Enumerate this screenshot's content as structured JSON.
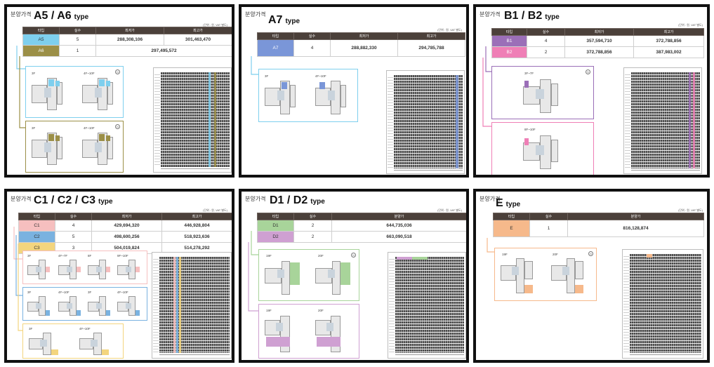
{
  "common": {
    "header_label": "분양가격",
    "unit_note": "(단위 : 원, VAT 별도)"
  },
  "colors": {
    "blue": "#7ecfee",
    "olive": "#9b8f47",
    "periwinkle": "#7a96d8",
    "purple": "#9b6fb8",
    "pink": "#ef7fb6",
    "c1": "#f6bfbf",
    "c2": "#7ab2e0",
    "c3": "#f3d57e",
    "green": "#a8d49a",
    "lilac": "#cfa0d2",
    "orange": "#f6b98b"
  },
  "panels": [
    {
      "title": "A5 / A6",
      "subtitle": "type",
      "headers": [
        "타입",
        "실수",
        "최저가",
        "최고가"
      ],
      "rows": [
        {
          "type": "A5",
          "count": "5",
          "min": "288,308,106",
          "max": "301,463,470"
        },
        {
          "type": "A6",
          "count": "1",
          "single": "297,495,572"
        }
      ],
      "floor_groups": [
        {
          "labels": [
            "3F",
            "4F~10F"
          ]
        },
        {
          "labels": [
            "3F",
            "4F~10F"
          ]
        }
      ]
    },
    {
      "title": "A7",
      "subtitle": "type",
      "headers": [
        "타입",
        "실수",
        "최저가",
        "최고가"
      ],
      "rows": [
        {
          "type": "A7",
          "count": "4",
          "min": "288,882,330",
          "max": "294,785,788"
        }
      ],
      "floor_groups": [
        {
          "labels": [
            "3F",
            "4F~10F"
          ]
        }
      ]
    },
    {
      "title": "B1 / B2",
      "subtitle": "type",
      "headers": [
        "타입",
        "실수",
        "최저가",
        "최고가"
      ],
      "rows": [
        {
          "type": "B1",
          "count": "4",
          "min": "357,594,710",
          "max": "372,788,856"
        },
        {
          "type": "B2",
          "count": "2",
          "min": "372,788,856",
          "max": "387,983,002"
        }
      ],
      "floor_groups": [
        {
          "labels": [
            "3F~7F"
          ]
        },
        {
          "labels": [
            "8F~10F"
          ]
        }
      ]
    },
    {
      "title": "C1 / C2 / C3",
      "subtitle": "type",
      "headers": [
        "타입",
        "실수",
        "최저가",
        "최고가"
      ],
      "rows": [
        {
          "type": "C1",
          "count": "4",
          "min": "429,694,320",
          "max": "446,928,804"
        },
        {
          "type": "C2",
          "count": "5",
          "min": "498,600,256",
          "max": "518,923,636"
        },
        {
          "type": "C3",
          "count": "3",
          "min": "504,019,824",
          "max": "514,278,292"
        }
      ],
      "floor_groups": [
        {
          "labels": [
            "3F",
            "4F~7F",
            "8F",
            "9F~10F"
          ]
        },
        {
          "labels": [
            "3F",
            "4F~10F",
            "3F",
            "4F~10F"
          ]
        },
        {
          "labels": [
            "3F",
            "4F~10F"
          ]
        }
      ]
    },
    {
      "title": "D1 / D2",
      "subtitle": "type",
      "headers": [
        "타입",
        "실수",
        "분양가"
      ],
      "rows": [
        {
          "type": "D1",
          "count": "2",
          "single": "644,735,036"
        },
        {
          "type": "D2",
          "count": "2",
          "single": "663,090,518"
        }
      ],
      "floor_groups": [
        {
          "labels": [
            "19F",
            "20F"
          ]
        },
        {
          "labels": [
            "19F",
            "20F"
          ]
        }
      ]
    },
    {
      "title": "E",
      "subtitle": "type",
      "headers": [
        "타입",
        "실수",
        "분양가"
      ],
      "rows": [
        {
          "type": "E",
          "count": "1",
          "single": "816,128,874"
        }
      ],
      "floor_groups": [
        {
          "labels": [
            "19F",
            "20F"
          ]
        }
      ]
    }
  ]
}
